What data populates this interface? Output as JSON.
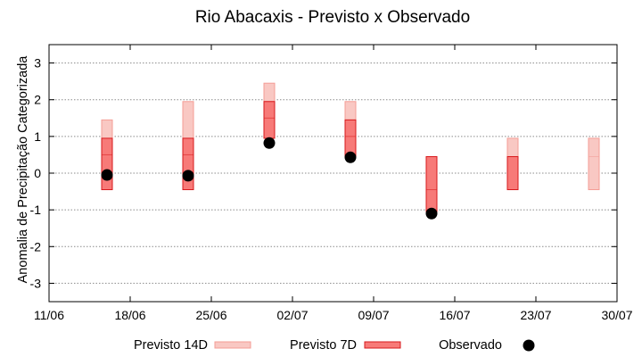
{
  "chart_data": {
    "type": "range-bar",
    "title": "Rio Abacaxis - Previsto x Observado",
    "xlabel": "",
    "ylabel": "Anomalia de Precipitação Categorizada",
    "ylim": [
      -3.5,
      3.5
    ],
    "yticks": [
      -3,
      -2,
      -1,
      0,
      1,
      2,
      3
    ],
    "xlim": [
      "11/06",
      "30/07"
    ],
    "xticks": [
      "11/06",
      "18/06",
      "25/06",
      "02/07",
      "09/07",
      "16/07",
      "23/07",
      "30/07"
    ],
    "grid": true,
    "legend": "bottom",
    "series": [
      {
        "name": "Previsto 14D",
        "color": "#f9c8c3",
        "edge": "#f49d96",
        "points": [
          {
            "date": "16/06",
            "low": -0.45,
            "mid": 0.5,
            "high": 1.45
          },
          {
            "date": "23/06",
            "low": -0.45,
            "mid": 0.95,
            "high": 1.95
          },
          {
            "date": "30/06",
            "low": 0.95,
            "mid": 1.95,
            "high": 2.45
          },
          {
            "date": "07/07",
            "low": 0.45,
            "mid": 1.45,
            "high": 1.95
          },
          {
            "date": "14/07",
            "low": -1.05,
            "mid": -0.45,
            "high": 0.45
          },
          {
            "date": "21/07",
            "low": -0.45,
            "mid": 0.45,
            "high": 0.95
          },
          {
            "date": "28/07",
            "low": -0.45,
            "mid": 0.45,
            "high": 0.95
          }
        ]
      },
      {
        "name": "Previsto 7D",
        "color": "#f77a78",
        "edge": "#d7191c",
        "points": [
          {
            "date": "16/06",
            "low": -0.45,
            "mid": 0.5,
            "high": 0.95
          },
          {
            "date": "23/06",
            "low": -0.45,
            "mid": 0.5,
            "high": 0.95
          },
          {
            "date": "30/06",
            "low": 0.95,
            "mid": 1.5,
            "high": 1.95
          },
          {
            "date": "07/07",
            "low": 0.45,
            "mid": 1.0,
            "high": 1.45
          },
          {
            "date": "14/07",
            "low": -1.05,
            "mid": -0.45,
            "high": 0.45
          },
          {
            "date": "21/07",
            "low": -0.45,
            "mid": 0.45,
            "high": 0.45
          }
        ]
      },
      {
        "name": "Observado",
        "color": "#000000",
        "points": [
          {
            "date": "16/06",
            "y": -0.05
          },
          {
            "date": "23/06",
            "y": -0.07
          },
          {
            "date": "30/06",
            "y": 0.82
          },
          {
            "date": "07/07",
            "y": 0.43
          },
          {
            "date": "14/07",
            "y": -1.1
          }
        ]
      }
    ]
  }
}
